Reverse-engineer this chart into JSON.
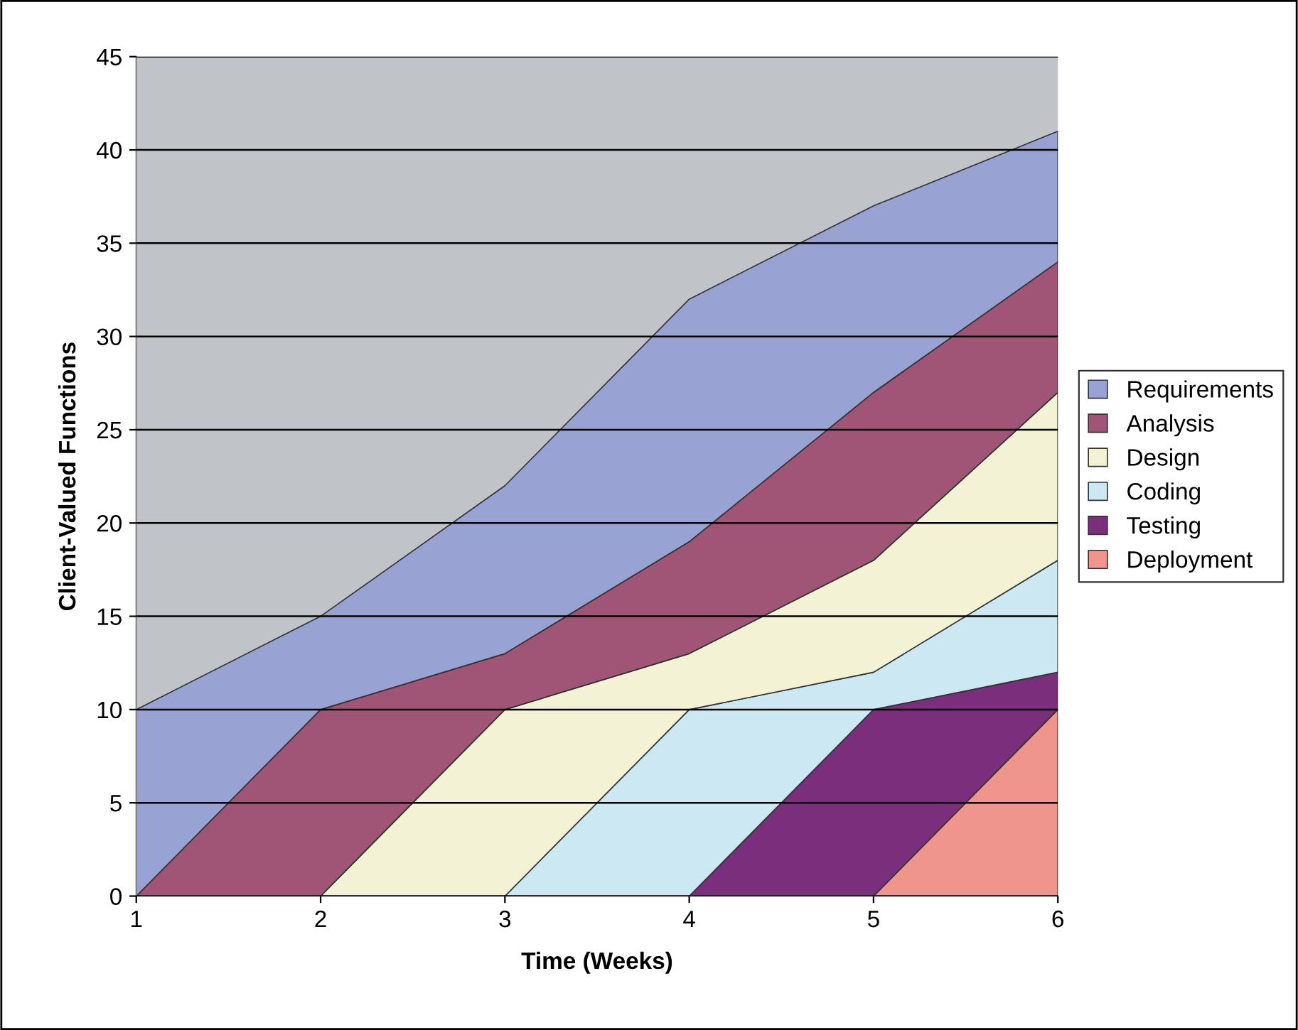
{
  "chart_data": {
    "type": "area",
    "stacked": true,
    "xlabel": "Time (Weeks)",
    "ylabel": "Client-Valued Functions",
    "x": [
      1,
      2,
      3,
      4,
      5,
      6
    ],
    "series": [
      {
        "name": "Deployment",
        "color": "#ef958e",
        "values": [
          0,
          0,
          0,
          0,
          0,
          10
        ]
      },
      {
        "name": "Testing",
        "color": "#7b2e7b",
        "values": [
          0,
          0,
          0,
          0,
          10,
          2
        ]
      },
      {
        "name": "Coding",
        "color": "#cce8f2",
        "values": [
          0,
          0,
          0,
          10,
          2,
          6
        ]
      },
      {
        "name": "Design",
        "color": "#f3f2d4",
        "values": [
          0,
          0,
          10,
          3,
          6,
          9
        ]
      },
      {
        "name": "Analysis",
        "color": "#a05577",
        "values": [
          0,
          10,
          3,
          6,
          9,
          7
        ]
      },
      {
        "name": "Requirements",
        "color": "#99a3d3",
        "values": [
          10,
          5,
          9,
          13,
          10,
          7
        ]
      }
    ],
    "xlim": [
      1,
      6
    ],
    "xticks": [
      1,
      2,
      3,
      4,
      5,
      6
    ],
    "ylim": [
      0,
      45
    ],
    "yticks": [
      0,
      5,
      10,
      15,
      20,
      25,
      30,
      35,
      40,
      45
    ],
    "grid": "y",
    "legend": "right"
  }
}
